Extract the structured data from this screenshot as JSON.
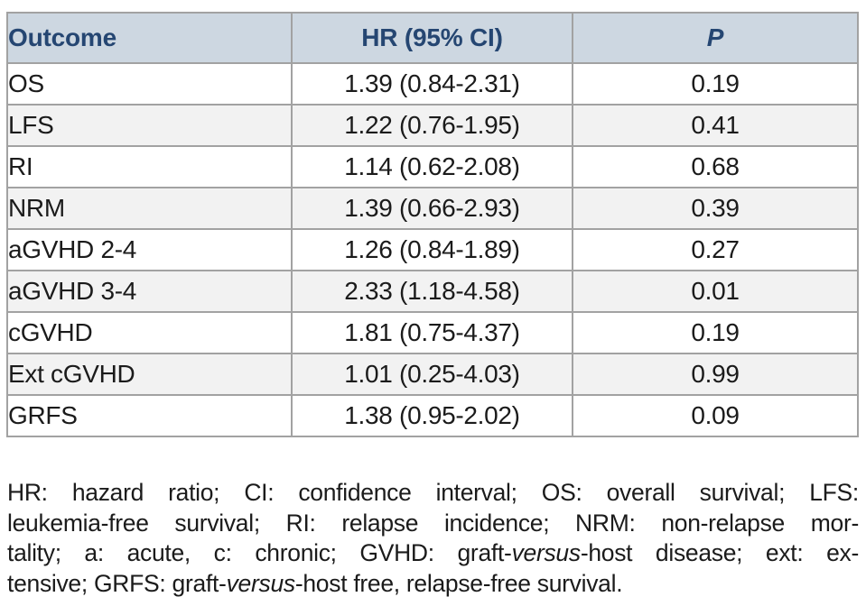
{
  "table": {
    "headers": {
      "outcome": "Outcome",
      "hr": "HR (95% CI)",
      "p": "P"
    },
    "rows": [
      {
        "outcome": "OS",
        "hr": "1.39 (0.84-2.31)",
        "p": "0.19"
      },
      {
        "outcome": "LFS",
        "hr": "1.22 (0.76-1.95)",
        "p": "0.41"
      },
      {
        "outcome": "RI",
        "hr": "1.14 (0.62-2.08)",
        "p": "0.68"
      },
      {
        "outcome": "NRM",
        "hr": "1.39 (0.66-2.93)",
        "p": "0.39"
      },
      {
        "outcome": "aGVHD 2-4",
        "hr": "1.26 (0.84-1.89)",
        "p": "0.27"
      },
      {
        "outcome": "aGVHD 3-4",
        "hr": "2.33 (1.18-4.58)",
        "p": "0.01"
      },
      {
        "outcome": "cGVHD",
        "hr": "1.81 (0.75-4.37)",
        "p": "0.19"
      },
      {
        "outcome": "Ext cGVHD",
        "hr": "1.01 (0.25-4.03)",
        "p": "0.99"
      },
      {
        "outcome": "GRFS",
        "hr": "1.38 (0.95-2.02)",
        "p": "0.09"
      }
    ]
  },
  "footnote": {
    "line1": "HR: hazard ratio; CI: confidence interval; OS: overall survival; LFS:",
    "line2": "leukemia-free survival; RI: relapse incidence; NRM: non-relapse mor-",
    "line3_a": "tality; a: acute, c: chronic; GVHD: graft-",
    "line3_i": "versus",
    "line3_b": "-host disease; ext: ex-",
    "line4_a": "tensive; GRFS: graft-",
    "line4_i": "versus",
    "line4_b": "-host free, relapse-free survival."
  },
  "colors": {
    "header_bg": "#cdd7e1",
    "header_text": "#254672",
    "alt_row_bg": "#f2f2f2",
    "border": "#a2a2a2",
    "body_text": "#1b1b1b"
  }
}
